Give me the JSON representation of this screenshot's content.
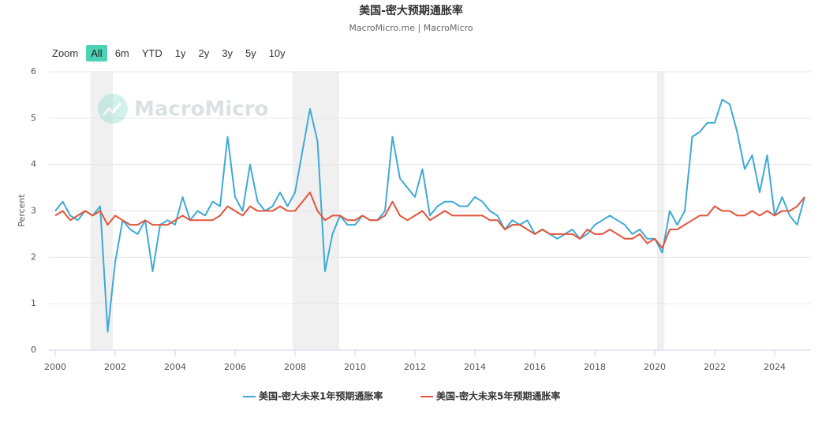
{
  "chart_data": {
    "type": "line",
    "title": "美国-密大预期通胀率",
    "subtitle": "MacroMicro.me | MacroMicro",
    "watermark": "MacroMicro",
    "y_label": "Percent",
    "range_selector": {
      "label": "Zoom",
      "buttons": [
        "All",
        "6m",
        "YTD",
        "1y",
        "2y",
        "3y",
        "5y",
        "10y"
      ],
      "selected": 0
    },
    "xlim": [
      1999.79,
      2025.21
    ],
    "ylim": [
      0,
      6
    ],
    "xticks": [
      2000,
      2002,
      2004,
      2006,
      2008,
      2010,
      2012,
      2014,
      2016,
      2018,
      2020,
      2022,
      2024
    ],
    "yticks": [
      0,
      1,
      2,
      3,
      4,
      5,
      6
    ],
    "grid": true,
    "band_color": "#f0f0f0",
    "bands": [
      [
        2001.18,
        2001.92
      ],
      [
        2007.92,
        2009.47
      ],
      [
        2020.08,
        2020.32
      ]
    ],
    "x": [
      2000,
      2000.25,
      2000.5,
      2000.75,
      2001,
      2001.25,
      2001.5,
      2001.75,
      2002,
      2002.25,
      2002.5,
      2002.75,
      2003,
      2003.25,
      2003.5,
      2003.75,
      2004,
      2004.25,
      2004.5,
      2004.75,
      2005,
      2005.25,
      2005.5,
      2005.75,
      2006,
      2006.25,
      2006.5,
      2006.75,
      2007,
      2007.25,
      2007.5,
      2007.75,
      2008,
      2008.25,
      2008.5,
      2008.75,
      2009,
      2009.25,
      2009.5,
      2009.75,
      2010,
      2010.25,
      2010.5,
      2010.75,
      2011,
      2011.25,
      2011.5,
      2011.75,
      2012,
      2012.25,
      2012.5,
      2012.75,
      2013,
      2013.25,
      2013.5,
      2013.75,
      2014,
      2014.25,
      2014.5,
      2014.75,
      2015,
      2015.25,
      2015.5,
      2015.75,
      2016,
      2016.25,
      2016.5,
      2016.75,
      2017,
      2017.25,
      2017.5,
      2017.75,
      2018,
      2018.25,
      2018.5,
      2018.75,
      2019,
      2019.25,
      2019.5,
      2019.75,
      2020,
      2020.25,
      2020.5,
      2020.75,
      2021,
      2021.25,
      2021.5,
      2021.75,
      2022,
      2022.25,
      2022.5,
      2022.75,
      2023,
      2023.25,
      2023.5,
      2023.75,
      2024,
      2024.25,
      2024.5,
      2024.75,
      2025
    ],
    "series": [
      {
        "name": "美国-密大未来1年预期通胀率",
        "color": "#3fa9d6",
        "values": [
          3.0,
          3.2,
          2.9,
          2.8,
          3.0,
          2.9,
          3.1,
          0.4,
          1.9,
          2.8,
          2.6,
          2.5,
          2.8,
          1.7,
          2.7,
          2.8,
          2.7,
          3.3,
          2.8,
          3.0,
          2.9,
          3.2,
          3.1,
          4.6,
          3.3,
          3.0,
          4.0,
          3.2,
          3.0,
          3.1,
          3.4,
          3.1,
          3.4,
          4.3,
          5.2,
          4.5,
          1.7,
          2.5,
          2.9,
          2.7,
          2.7,
          2.9,
          2.8,
          2.8,
          3.0,
          4.6,
          3.7,
          3.5,
          3.3,
          3.9,
          2.9,
          3.1,
          3.2,
          3.2,
          3.1,
          3.1,
          3.3,
          3.2,
          3.0,
          2.9,
          2.6,
          2.8,
          2.7,
          2.8,
          2.5,
          2.6,
          2.5,
          2.4,
          2.5,
          2.6,
          2.4,
          2.5,
          2.7,
          2.8,
          2.9,
          2.8,
          2.7,
          2.5,
          2.6,
          2.4,
          2.4,
          2.1,
          3.0,
          2.7,
          3.0,
          4.6,
          4.7,
          4.9,
          4.9,
          5.4,
          5.3,
          4.7,
          3.9,
          4.2,
          3.4,
          4.2,
          2.9,
          3.3,
          2.9,
          2.7,
          3.3
        ]
      },
      {
        "name": "美国-密大未来5年预期通胀率",
        "color": "#e2553b",
        "values": [
          2.9,
          3.0,
          2.8,
          2.9,
          3.0,
          2.9,
          3.0,
          2.7,
          2.9,
          2.8,
          2.7,
          2.7,
          2.8,
          2.7,
          2.7,
          2.7,
          2.8,
          2.9,
          2.8,
          2.8,
          2.8,
          2.8,
          2.9,
          3.1,
          3.0,
          2.9,
          3.1,
          3.0,
          3.0,
          3.0,
          3.1,
          3.0,
          3.0,
          3.2,
          3.4,
          3.0,
          2.8,
          2.9,
          2.9,
          2.8,
          2.8,
          2.9,
          2.8,
          2.8,
          2.9,
          3.2,
          2.9,
          2.8,
          2.9,
          3.0,
          2.8,
          2.9,
          3.0,
          2.9,
          2.9,
          2.9,
          2.9,
          2.9,
          2.8,
          2.8,
          2.6,
          2.7,
          2.7,
          2.6,
          2.5,
          2.6,
          2.5,
          2.5,
          2.5,
          2.5,
          2.4,
          2.6,
          2.5,
          2.5,
          2.6,
          2.5,
          2.4,
          2.4,
          2.5,
          2.3,
          2.4,
          2.2,
          2.6,
          2.6,
          2.7,
          2.8,
          2.9,
          2.9,
          3.1,
          3.0,
          3.0,
          2.9,
          2.9,
          3.0,
          2.9,
          3.0,
          2.9,
          3.0,
          3.0,
          3.1,
          3.3
        ]
      }
    ]
  }
}
